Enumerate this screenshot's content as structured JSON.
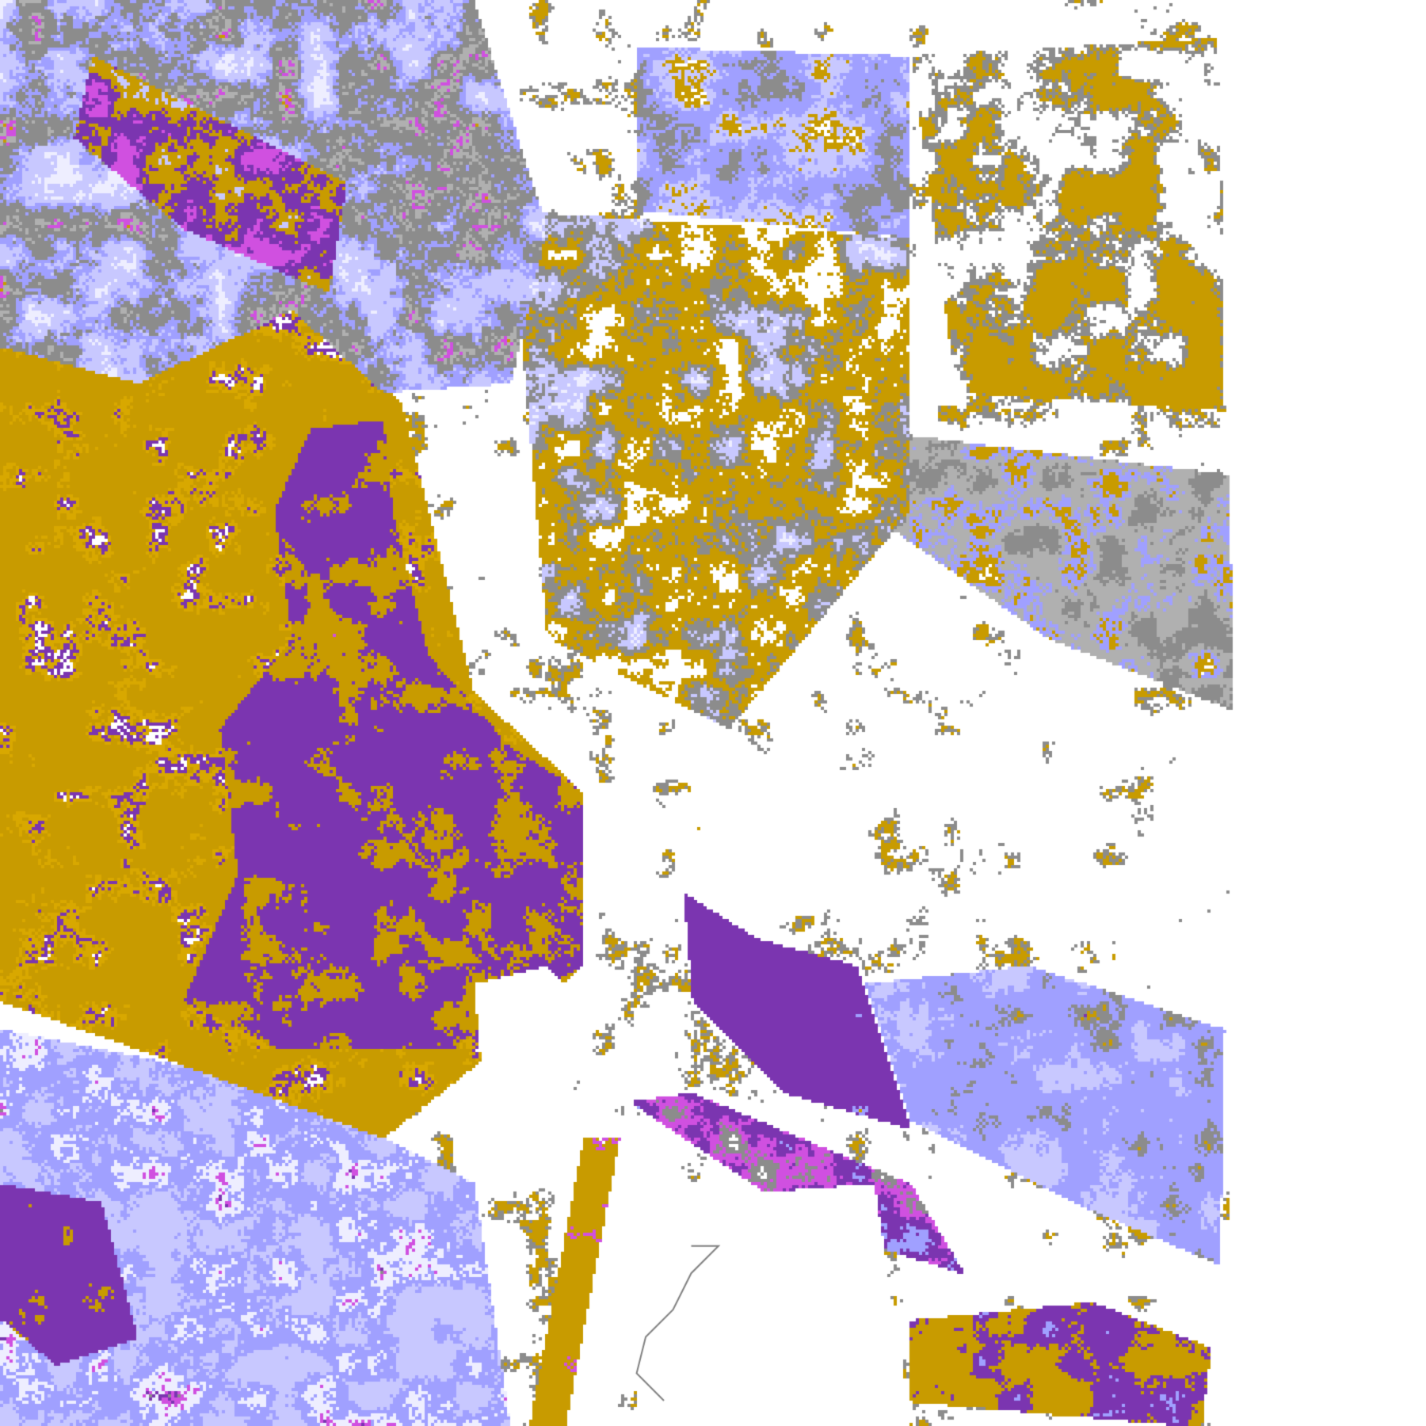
{
  "image": {
    "kind": "satellite cloud classification raster",
    "palette": {
      "clear": "#ffffff",
      "gold": "#c89b00",
      "gold_light": "#d8a800",
      "purple": "#7b35b0",
      "magenta": "#d050e0",
      "lavender_pale": "#eeeeff",
      "lavender": "#c8c8ff",
      "periwinkle": "#a0a0ff",
      "gray_light": "#b0b0b0",
      "gray": "#8c8c8c",
      "coastline": "#808080"
    }
  }
}
